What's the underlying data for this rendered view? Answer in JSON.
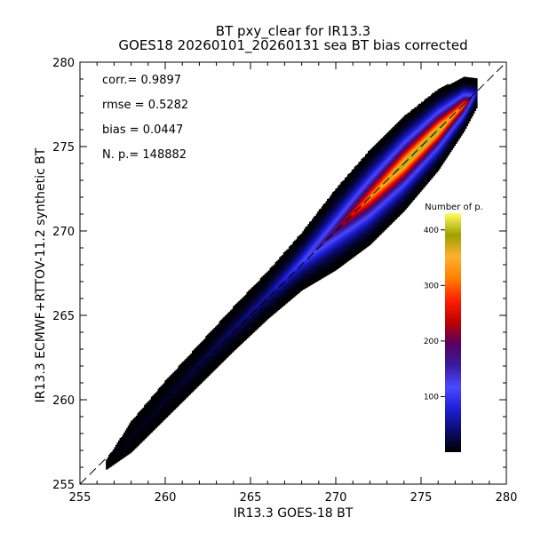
{
  "chart_data": {
    "type": "heatmap",
    "title_line1": "BT pxy_clear for IR13.3",
    "title_line2": "GOES18 20260101_20260131 sea BT bias corrected",
    "xlabel": "IR13.3 GOES-18 BT",
    "ylabel": "IR13.3 ECMWF+RTTOV-11.2 synthetic BT",
    "xlim": [
      255,
      280
    ],
    "ylim": [
      255,
      280
    ],
    "x_ticks": [
      255,
      260,
      265,
      270,
      275,
      280
    ],
    "y_ticks": [
      255,
      260,
      265,
      270,
      275,
      280
    ],
    "stats": {
      "corr": "corr.= 0.9897",
      "rmse": "rmse = 0.5282",
      "bias": "bias = 0.0447",
      "n": "N. p.=  148882"
    },
    "colorbar": {
      "title": "Number of p.",
      "ticks": [
        100,
        200,
        300,
        400
      ],
      "range": [
        0,
        430
      ],
      "colors": [
        "#000000",
        "#0b0b6e",
        "#1f1fd8",
        "#4a4aff",
        "#3a1a9e",
        "#5a0060",
        "#c00000",
        "#ff2000",
        "#ff8000",
        "#ffb030",
        "#a0a000",
        "#ffff60"
      ]
    },
    "distribution": {
      "description_points": [
        {
          "x": 256.5,
          "y_center": 256.1,
          "half_width": 0.25,
          "peak": 0
        },
        {
          "x": 258.0,
          "y_center": 257.8,
          "half_width": 0.9,
          "peak": 10
        },
        {
          "x": 260.0,
          "y_center": 260.0,
          "half_width": 1.1,
          "peak": 15
        },
        {
          "x": 262.0,
          "y_center": 262.1,
          "half_width": 1.2,
          "peak": 25
        },
        {
          "x": 264.0,
          "y_center": 264.2,
          "half_width": 1.3,
          "peak": 40
        },
        {
          "x": 266.0,
          "y_center": 266.2,
          "half_width": 1.4,
          "peak": 60
        },
        {
          "x": 268.0,
          "y_center": 268.2,
          "half_width": 1.7,
          "peak": 110
        },
        {
          "x": 270.0,
          "y_center": 270.1,
          "half_width": 2.4,
          "peak": 200
        },
        {
          "x": 272.0,
          "y_center": 272.0,
          "half_width": 2.8,
          "peak": 330
        },
        {
          "x": 274.0,
          "y_center": 274.0,
          "half_width": 2.8,
          "peak": 420
        },
        {
          "x": 276.0,
          "y_center": 276.0,
          "half_width": 2.4,
          "peak": 420
        },
        {
          "x": 277.5,
          "y_center": 277.5,
          "half_width": 1.6,
          "peak": 320
        },
        {
          "x": 278.3,
          "y_center": 278.2,
          "half_width": 0.8,
          "peak": 40
        }
      ]
    },
    "diagonal": "dashed"
  }
}
